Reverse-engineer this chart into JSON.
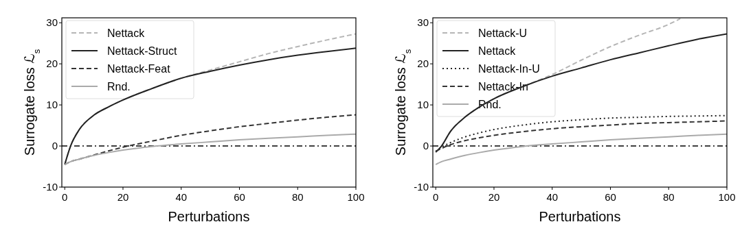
{
  "chart_data": [
    {
      "type": "line",
      "xlabel": "Perturbations",
      "ylabel": "Surrogate loss ℒ$_{s}$",
      "xlim": [
        -1,
        100
      ],
      "ylim": [
        -10,
        31.2
      ],
      "xticks": [
        0,
        20,
        40,
        60,
        80,
        100
      ],
      "yticks": [
        -10,
        0,
        10,
        20,
        30
      ],
      "legend": "top left",
      "grid": false,
      "marker": "none",
      "x": [
        0,
        2,
        5,
        10,
        15,
        20,
        30,
        40,
        50,
        60,
        70,
        80,
        90,
        100
      ],
      "series": [
        {
          "name": "Nettack",
          "color": "#b5b5b5",
          "line_style": "dashed",
          "values": [
            -4.5,
            0,
            4,
            7.5,
            9.5,
            11.2,
            14,
            16.5,
            18.5,
            20.5,
            22.5,
            24.2,
            25.8,
            27.3
          ]
        },
        {
          "name": "Nettack-Struct",
          "color": "#222222",
          "line_style": "solid",
          "values": [
            -4.5,
            0,
            4,
            7.5,
            9.5,
            11.2,
            14,
            16.5,
            18.2,
            19.7,
            21,
            22.1,
            23,
            23.8
          ]
        },
        {
          "name": "Nettack-Feat",
          "color": "#333333",
          "line_style": "dashed",
          "values": [
            -4.5,
            -3.8,
            -3.2,
            -2.2,
            -1.2,
            -0.3,
            1.2,
            2.6,
            3.7,
            4.7,
            5.5,
            6.3,
            7,
            7.6
          ]
        },
        {
          "name": "Rnd.",
          "color": "#aaaaaa",
          "line_style": "solid",
          "values": [
            -4.5,
            -3.8,
            -3.2,
            -2.3,
            -1.6,
            -1,
            -0.1,
            0.5,
            1,
            1.5,
            1.9,
            2.2,
            2.6,
            2.9
          ]
        }
      ],
      "ref_lines": [
        {
          "axis": "y",
          "value": 0,
          "color": "#000000",
          "line_style": "dashdot"
        }
      ]
    },
    {
      "type": "line",
      "xlabel": "Perturbations",
      "ylabel": "Surrogate loss ℒ$_{s}$",
      "xlim": [
        -1,
        100
      ],
      "ylim": [
        -10,
        31.2
      ],
      "xticks": [
        0,
        20,
        40,
        60,
        80,
        100
      ],
      "yticks": [
        -10,
        0,
        10,
        20,
        30
      ],
      "legend": "top left",
      "grid": false,
      "marker": "none",
      "x": [
        0,
        2,
        5,
        10,
        15,
        20,
        30,
        40,
        50,
        60,
        70,
        80,
        90,
        100
      ],
      "series": [
        {
          "name": "Nettack-U",
          "color": "#b5b5b5",
          "line_style": "dashed",
          "x": [
            0,
            2,
            5,
            10,
            15,
            20,
            30,
            40,
            50,
            60,
            70,
            80,
            84
          ],
          "values": [
            -1.5,
            0,
            3.5,
            7,
            9.5,
            11.5,
            14.5,
            17.4,
            20.9,
            24.2,
            27,
            29.6,
            31
          ]
        },
        {
          "name": "Nettack",
          "color": "#222222",
          "line_style": "solid",
          "values": [
            -1.5,
            0,
            3.5,
            7,
            9.5,
            11.5,
            14.5,
            17,
            19,
            21,
            22.7,
            24.4,
            26,
            27.3
          ]
        },
        {
          "name": "Nettack-In-U",
          "color": "#222222",
          "line_style": "dotted",
          "values": [
            -1.3,
            -0.3,
            0.8,
            2.2,
            3.2,
            4,
            5.1,
            5.9,
            6.4,
            6.8,
            7,
            7.2,
            7.3,
            7.4
          ]
        },
        {
          "name": "Nettack-In",
          "color": "#333333",
          "line_style": "dashed",
          "values": [
            -1.3,
            -0.6,
            0.3,
            1.3,
            2,
            2.6,
            3.5,
            4.2,
            4.7,
            5.1,
            5.5,
            5.7,
            5.9,
            6.1
          ]
        },
        {
          "name": "Rnd.",
          "color": "#aaaaaa",
          "line_style": "solid",
          "values": [
            -4.5,
            -3.8,
            -3.2,
            -2.3,
            -1.6,
            -1,
            -0.1,
            0.5,
            1,
            1.5,
            1.9,
            2.2,
            2.6,
            2.9
          ]
        }
      ],
      "ref_lines": [
        {
          "axis": "y",
          "value": 0,
          "color": "#000000",
          "line_style": "dashdot"
        }
      ]
    }
  ]
}
